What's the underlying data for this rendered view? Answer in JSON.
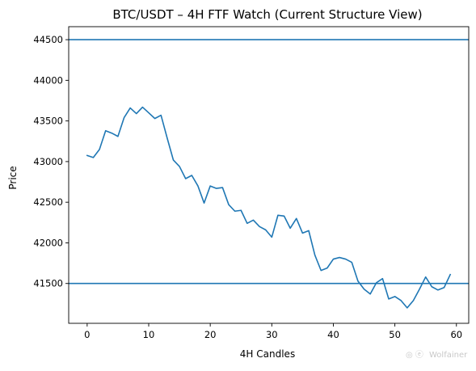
{
  "chart_data": {
    "type": "line",
    "title": "BTC/USDT – 4H FTF Watch (Current Structure View)",
    "xlabel": "4H Candles",
    "ylabel": "Price",
    "xlim": [
      -3,
      62
    ],
    "ylim": [
      41010,
      44660
    ],
    "xticks": [
      0,
      10,
      20,
      30,
      40,
      50,
      60
    ],
    "yticks": [
      41500,
      42000,
      42500,
      43000,
      43500,
      44000,
      44500
    ],
    "grid": false,
    "x": [
      0,
      1,
      2,
      3,
      4,
      5,
      6,
      7,
      8,
      9,
      10,
      11,
      12,
      13,
      14,
      15,
      16,
      17,
      18,
      19,
      20,
      21,
      22,
      23,
      24,
      25,
      26,
      27,
      28,
      29,
      30,
      31,
      32,
      33,
      34,
      35,
      36,
      37,
      38,
      39,
      40,
      41,
      42,
      43,
      44,
      45,
      46,
      47,
      48,
      49,
      50,
      51,
      52,
      53,
      54,
      55,
      56,
      57,
      58,
      59
    ],
    "series": [
      {
        "values": [
          43075,
          43050,
          43150,
          43380,
          43350,
          43310,
          43540,
          43660,
          43590,
          43670,
          43600,
          43530,
          43570,
          43290,
          43020,
          42940,
          42790,
          42830,
          42700,
          42490,
          42700,
          42670,
          42680,
          42470,
          42390,
          42400,
          42240,
          42280,
          42200,
          42160,
          42070,
          42340,
          42330,
          42180,
          42300,
          42120,
          42150,
          41850,
          41660,
          41690,
          41800,
          41820,
          41800,
          41760,
          41530,
          41430,
          41370,
          41510,
          41560,
          41310,
          41340,
          41290,
          41200,
          41290,
          41430,
          41580,
          41460,
          41420,
          41450,
          41610
        ],
        "color": "#1f77b4"
      }
    ],
    "reference_lines": [
      {
        "axis": "y",
        "value": 44500,
        "color": "#1f77b4"
      },
      {
        "axis": "y",
        "value": 41500,
        "color": "#1f77b4"
      }
    ]
  },
  "watermark": "Wolfainer"
}
